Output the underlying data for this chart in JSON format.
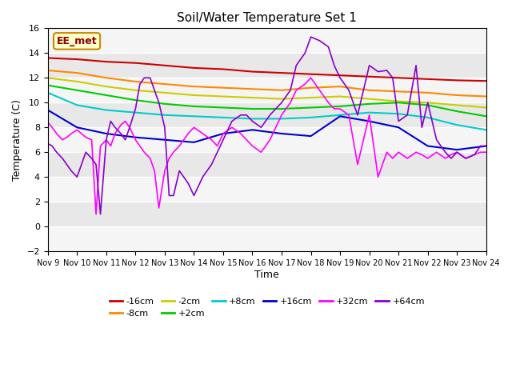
{
  "title": "Soil/Water Temperature Set 1",
  "xlabel": "Time",
  "ylabel": "Temperature (C)",
  "ylim": [
    -2,
    16
  ],
  "xlim": [
    0,
    15
  ],
  "annotation": "EE_met",
  "x_tick_labels": [
    "Nov 9",
    "Nov 10",
    "Nov 11",
    "Nov 12",
    "Nov 13",
    "Nov 14",
    "Nov 15",
    "Nov 16",
    "Nov 17",
    "Nov 18",
    "Nov 19",
    "Nov 20",
    "Nov 21",
    "Nov 22",
    "Nov 23",
    "Nov 24"
  ],
  "background_color": "#ffffff",
  "plot_bg_color": "#e8e8e8",
  "series": [
    {
      "label": "-16cm",
      "color": "#cc0000",
      "linewidth": 1.5,
      "data_x": [
        0,
        1,
        2,
        3,
        4,
        5,
        6,
        7,
        8,
        9,
        10,
        11,
        12,
        13,
        14,
        15
      ],
      "data_y": [
        13.6,
        13.5,
        13.3,
        13.2,
        13.0,
        12.8,
        12.7,
        12.5,
        12.4,
        12.3,
        12.2,
        12.1,
        12.0,
        11.9,
        11.8,
        11.75
      ]
    },
    {
      "label": "-8cm",
      "color": "#ff8800",
      "linewidth": 1.5,
      "data_x": [
        0,
        1,
        2,
        3,
        4,
        5,
        6,
        7,
        8,
        9,
        10,
        11,
        12,
        13,
        14,
        15
      ],
      "data_y": [
        12.6,
        12.4,
        12.0,
        11.7,
        11.5,
        11.3,
        11.2,
        11.1,
        11.0,
        11.2,
        11.3,
        11.0,
        10.9,
        10.8,
        10.6,
        10.5
      ]
    },
    {
      "label": "-2cm",
      "color": "#cccc00",
      "linewidth": 1.5,
      "data_x": [
        0,
        1,
        2,
        3,
        4,
        5,
        6,
        7,
        8,
        9,
        10,
        11,
        12,
        13,
        14,
        15
      ],
      "data_y": [
        12.0,
        11.7,
        11.3,
        11.0,
        10.8,
        10.6,
        10.5,
        10.4,
        10.3,
        10.4,
        10.5,
        10.3,
        10.1,
        10.0,
        9.8,
        9.6
      ]
    },
    {
      "label": "+2cm",
      "color": "#00cc00",
      "linewidth": 1.5,
      "data_x": [
        0,
        1,
        2,
        3,
        4,
        5,
        6,
        7,
        8,
        9,
        10,
        11,
        12,
        13,
        14,
        15
      ],
      "data_y": [
        11.4,
        11.0,
        10.6,
        10.2,
        9.9,
        9.7,
        9.6,
        9.5,
        9.5,
        9.6,
        9.7,
        9.9,
        10.0,
        9.8,
        9.3,
        8.9
      ]
    },
    {
      "label": "+8cm",
      "color": "#00cccc",
      "linewidth": 1.5,
      "data_x": [
        0,
        1,
        2,
        3,
        4,
        5,
        6,
        7,
        8,
        9,
        10,
        11,
        12,
        13,
        14,
        15
      ],
      "data_y": [
        10.8,
        9.8,
        9.4,
        9.2,
        9.0,
        8.9,
        8.8,
        8.7,
        8.7,
        8.8,
        9.0,
        9.2,
        9.1,
        8.8,
        8.2,
        7.8
      ]
    },
    {
      "label": "+16cm",
      "color": "#0000cc",
      "linewidth": 1.5,
      "data_x": [
        0,
        1,
        2,
        3,
        4,
        5,
        6,
        7,
        8,
        9,
        10,
        11,
        12,
        13,
        14,
        15
      ],
      "data_y": [
        9.4,
        8.0,
        7.5,
        7.2,
        7.0,
        6.8,
        7.5,
        7.8,
        7.5,
        7.3,
        8.9,
        8.5,
        8.0,
        6.5,
        6.2,
        6.5
      ]
    },
    {
      "label": "+32cm",
      "color": "#ff00ff",
      "linewidth": 1.2,
      "data_x": [
        0,
        0.15,
        0.3,
        0.5,
        0.65,
        0.8,
        1.0,
        1.15,
        1.3,
        1.5,
        1.65,
        1.8,
        2.0,
        2.15,
        2.3,
        2.5,
        2.65,
        2.8,
        3.0,
        3.15,
        3.3,
        3.5,
        3.65,
        3.8,
        4.0,
        4.15,
        4.3,
        4.5,
        4.65,
        4.8,
        5.0,
        5.3,
        5.6,
        5.8,
        6.0,
        6.3,
        6.6,
        6.8,
        7.0,
        7.3,
        7.6,
        7.8,
        8.0,
        8.3,
        8.5,
        8.8,
        9.0,
        9.3,
        9.6,
        9.8,
        10.0,
        10.3,
        10.6,
        10.8,
        11.0,
        11.3,
        11.6,
        11.8,
        12.0,
        12.3,
        12.6,
        12.8,
        13.0,
        13.3,
        13.6,
        13.8,
        14.0,
        14.3,
        14.6,
        14.8,
        15.0
      ],
      "data_y": [
        8.4,
        8.0,
        7.5,
        7.0,
        7.2,
        7.5,
        7.8,
        7.5,
        7.2,
        7.0,
        1.0,
        6.5,
        7.0,
        6.5,
        7.5,
        8.2,
        8.5,
        8.0,
        7.0,
        6.5,
        6.0,
        5.5,
        4.5,
        1.5,
        4.5,
        5.5,
        6.0,
        6.5,
        7.0,
        7.5,
        8.0,
        7.5,
        7.0,
        6.5,
        7.5,
        8.0,
        7.5,
        7.0,
        6.5,
        6.0,
        7.0,
        8.0,
        9.0,
        10.0,
        11.0,
        11.5,
        12.0,
        11.0,
        10.0,
        9.5,
        9.5,
        9.0,
        5.0,
        7.0,
        9.0,
        4.0,
        6.0,
        5.5,
        6.0,
        5.5,
        6.0,
        5.8,
        5.5,
        6.0,
        5.5,
        5.8,
        6.0,
        5.5,
        5.8,
        6.0,
        6.0
      ]
    },
    {
      "label": "+64cm",
      "color": "#8800cc",
      "linewidth": 1.2,
      "data_x": [
        0,
        0.15,
        0.3,
        0.5,
        0.65,
        0.8,
        1.0,
        1.15,
        1.3,
        1.5,
        1.65,
        1.8,
        2.0,
        2.15,
        2.3,
        2.5,
        2.65,
        2.8,
        3.0,
        3.15,
        3.3,
        3.5,
        3.65,
        3.8,
        4.0,
        4.15,
        4.3,
        4.5,
        4.65,
        4.8,
        5.0,
        5.3,
        5.6,
        5.8,
        6.0,
        6.3,
        6.6,
        6.8,
        7.0,
        7.3,
        7.6,
        7.8,
        8.0,
        8.3,
        8.5,
        8.8,
        9.0,
        9.3,
        9.6,
        9.8,
        10.0,
        10.3,
        10.6,
        10.8,
        11.0,
        11.3,
        11.6,
        11.8,
        12.0,
        12.3,
        12.6,
        12.8,
        13.0,
        13.3,
        13.6,
        13.8,
        14.0,
        14.3,
        14.6,
        14.8,
        15.0
      ],
      "data_y": [
        6.7,
        6.5,
        6.0,
        5.5,
        5.0,
        4.5,
        4.0,
        5.0,
        6.0,
        5.5,
        5.0,
        1.0,
        7.0,
        8.5,
        8.0,
        7.5,
        7.0,
        8.0,
        9.5,
        11.5,
        12.0,
        12.0,
        11.0,
        10.0,
        8.0,
        2.5,
        2.5,
        4.5,
        4.0,
        3.5,
        2.5,
        4.0,
        5.0,
        6.0,
        7.0,
        8.5,
        9.0,
        9.0,
        8.5,
        8.0,
        9.0,
        9.5,
        10.0,
        11.0,
        13.0,
        14.0,
        15.3,
        15.0,
        14.5,
        13.0,
        12.0,
        11.0,
        9.0,
        11.0,
        13.0,
        12.5,
        12.6,
        12.0,
        8.5,
        9.0,
        13.0,
        8.0,
        10.0,
        7.0,
        6.0,
        5.5,
        6.0,
        5.5,
        5.8,
        6.5,
        6.5
      ]
    }
  ]
}
